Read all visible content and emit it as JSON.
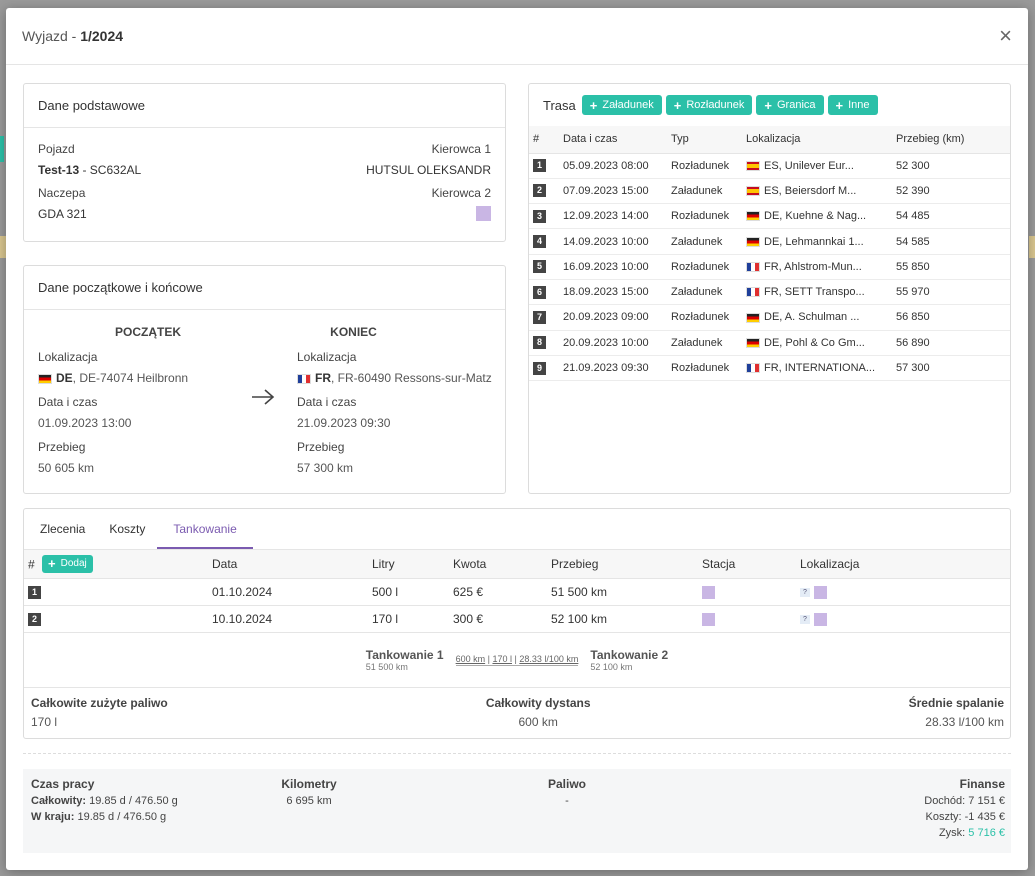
{
  "modal": {
    "title_prefix": "Wyjazd - ",
    "title_number": "1/2024",
    "close_glyph": "×"
  },
  "basic": {
    "heading": "Dane podstawowe",
    "vehicle_label": "Pojazd",
    "vehicle_name": "Test-13",
    "vehicle_plate": " - SC632AL",
    "driver1_label": "Kierowca 1",
    "driver1_value": "HUTSUL OLEKSANDR",
    "trailer_label": "Naczepa",
    "trailer_value": "GDA 321",
    "driver2_label": "Kierowca 2"
  },
  "startend": {
    "heading": "Dane początkowe i końcowe",
    "start": {
      "title": "POCZĄTEK",
      "loc_label": "Lokalizacja",
      "country": "DE",
      "loc": ", DE-74074 Heilbronn",
      "dt_label": "Data i czas",
      "dt": "01.09.2023 13:00",
      "km_label": "Przebieg",
      "km": "50 605 km"
    },
    "end": {
      "title": "KONIEC",
      "loc_label": "Lokalizacja",
      "country": "FR",
      "loc": ", FR-60490 Ressons-sur-Matz",
      "dt_label": "Data i czas",
      "dt": "21.09.2023 09:30",
      "km_label": "Przebieg",
      "km": "57 300 km"
    },
    "arrow_icon": "arrow-right-icon"
  },
  "route": {
    "heading": "Trasa",
    "buttons": [
      "Załadunek",
      "Rozładunek",
      "Granica",
      "Inne"
    ],
    "headers": [
      "#",
      "Data i czas",
      "Typ",
      "Lokalizacja",
      "Przebieg (km)"
    ],
    "rows": [
      {
        "n": "1",
        "dt": "05.09.2023 08:00",
        "type": "Rozładunek",
        "flag": "es",
        "loc": "ES, Unilever Eur...",
        "km": "52 300"
      },
      {
        "n": "2",
        "dt": "07.09.2023 15:00",
        "type": "Załadunek",
        "flag": "es",
        "loc": "ES, Beiersdorf M...",
        "km": "52 390"
      },
      {
        "n": "3",
        "dt": "12.09.2023 14:00",
        "type": "Rozładunek",
        "flag": "de",
        "loc": "DE, Kuehne & Nag...",
        "km": "54 485"
      },
      {
        "n": "4",
        "dt": "14.09.2023 10:00",
        "type": "Załadunek",
        "flag": "de",
        "loc": "DE, Lehmannkai 1...",
        "km": "54 585"
      },
      {
        "n": "5",
        "dt": "16.09.2023 10:00",
        "type": "Rozładunek",
        "flag": "fr",
        "loc": "FR, Ahlstrom-Mun...",
        "km": "55 850"
      },
      {
        "n": "6",
        "dt": "18.09.2023 15:00",
        "type": "Załadunek",
        "flag": "fr",
        "loc": "FR, SETT Transpo...",
        "km": "55 970"
      },
      {
        "n": "7",
        "dt": "20.09.2023 09:00",
        "type": "Rozładunek",
        "flag": "de",
        "loc": "DE, A. Schulman ...",
        "km": "56 850"
      },
      {
        "n": "8",
        "dt": "20.09.2023 10:00",
        "type": "Załadunek",
        "flag": "de",
        "loc": "DE, Pohl & Co Gm...",
        "km": "56 890"
      },
      {
        "n": "9",
        "dt": "21.09.2023 09:30",
        "type": "Rozładunek",
        "flag": "fr",
        "loc": "FR, INTERNATIONA...",
        "km": "57 300"
      }
    ]
  },
  "tabs": [
    "Zlecenia",
    "Koszty",
    "Tankowanie"
  ],
  "fuel": {
    "add_label": "Dodaj",
    "headers": [
      "#",
      "Data",
      "Litry",
      "Kwota",
      "Przebieg",
      "Stacja",
      "Lokalizacja"
    ],
    "rows": [
      {
        "n": "1",
        "date": "01.10.2024",
        "liters": "500 l",
        "amount": "625 €",
        "km": "51 500 km",
        "q": "?"
      },
      {
        "n": "2",
        "date": "10.10.2024",
        "liters": "170 l",
        "amount": "300 €",
        "km": "52 100 km",
        "q": "?"
      }
    ],
    "segment": {
      "from_title": "Tankowanie 1",
      "from_km": "51 500 km",
      "dist": "600 km",
      "liters": "170 l",
      "avg": "28.33 l/100 km",
      "to_title": "Tankowanie 2",
      "to_km": "52 100 km"
    },
    "totals": {
      "fuel_label": "Całkowite zużyte paliwo",
      "fuel_value": "170 l",
      "dist_label": "Całkowity dystans",
      "dist_value": "600 km",
      "avg_label": "Średnie spalanie",
      "avg_value": "28.33 l/100 km"
    }
  },
  "summary": {
    "work_title": "Czas pracy",
    "work_total_label": "Całkowity:",
    "work_total": " 19.85 d / 476.50 g",
    "work_home_label": "W kraju:",
    "work_home": " 19.85 d / 476.50 g",
    "km_title": "Kilometry",
    "km_value": "6 695 km",
    "fuel_title": "Paliwo",
    "fuel_value": "-",
    "fin_title": "Finanse",
    "income_label": "Dochód:",
    "income": " 7 151 €",
    "costs_label": "Koszty:",
    "costs": " -1 435 €",
    "profit_label": "Zysk:",
    "profit": " 5 716 €",
    "profit_color": "#2bc0a8"
  }
}
